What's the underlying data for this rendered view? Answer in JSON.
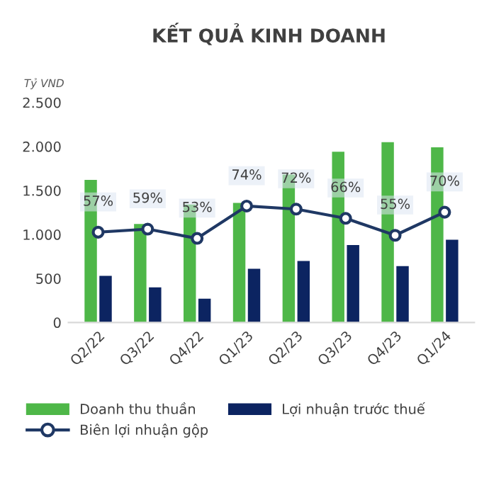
{
  "chart_data": {
    "type": "bar",
    "title": "KẾT QUẢ KINH DOANH",
    "ylabel": "Tỷ VND",
    "categories": [
      "Q2/22",
      "Q3/22",
      "Q4/22",
      "Q1/23",
      "Q2/23",
      "Q3/23",
      "Q4/23",
      "Q1/24"
    ],
    "series": [
      {
        "name": "Doanh thu thuần",
        "color": "#4eb748",
        "values": [
          1620,
          1120,
          1340,
          1360,
          1680,
          1940,
          2050,
          1990
        ]
      },
      {
        "name": "Lợi nhuận trước thuế",
        "color": "#0c2461",
        "values": [
          530,
          400,
          270,
          610,
          700,
          880,
          640,
          940
        ]
      },
      {
        "name": "Biên lợi nhuận gộp",
        "type": "line",
        "axis": "y2",
        "color": "#1f3864",
        "marker": "circle",
        "values": [
          57,
          59,
          53,
          74,
          72,
          66,
          55,
          70
        ],
        "value_labels": [
          "57%",
          "59%",
          "53%",
          "74%",
          "72%",
          "66%",
          "55%",
          "70%"
        ]
      }
    ],
    "ylim": [
      0,
      2500
    ],
    "yticks": [
      {
        "value": 0,
        "label": "0"
      },
      {
        "value": 500,
        "label": "500"
      },
      {
        "value": 1000,
        "label": "1.000"
      },
      {
        "value": 1500,
        "label": "1.500"
      },
      {
        "value": 2000,
        "label": "2.000"
      },
      {
        "value": 2500,
        "label": "2.500"
      }
    ],
    "tick_labels": "xy",
    "grid": false,
    "legend": "bottom"
  }
}
